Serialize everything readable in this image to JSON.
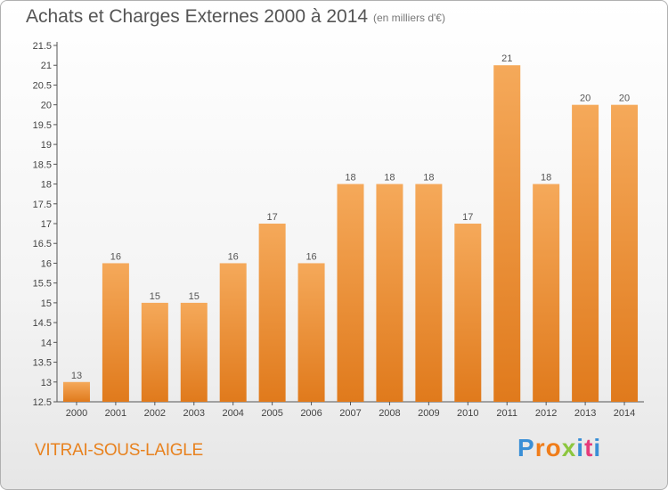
{
  "header": {
    "title": "Achats et Charges Externes 2000 à 2014",
    "unit": "(en milliers d'€)"
  },
  "footer": {
    "place": "VITRAI-SOUS-LAIGLE",
    "logo_letters": [
      "P",
      "r",
      "o",
      "x",
      "i",
      "t",
      "i"
    ]
  },
  "colors": {
    "bar_light": "#f5a95a",
    "bar_dark": "#e07a1c",
    "place_text": "#e8821f",
    "logo": [
      "#3a8fd6",
      "#f07d1a",
      "#f07d1a",
      "#8cc63f",
      "#3a8fd6",
      "#e63b7a",
      "#3a8fd6"
    ]
  },
  "chart_data": {
    "type": "bar",
    "title": "Achats et Charges Externes 2000 à 2014",
    "subtitle": "(en milliers d'€)",
    "categories": [
      "2000",
      "2001",
      "2002",
      "2003",
      "2004",
      "2005",
      "2006",
      "2007",
      "2008",
      "2009",
      "2010",
      "2011",
      "2012",
      "2013",
      "2014"
    ],
    "values": [
      13,
      16,
      15,
      15,
      16,
      17,
      16,
      18,
      18,
      18,
      17,
      21,
      18,
      20,
      20
    ],
    "ylim": [
      12.5,
      21.5
    ],
    "yticks": [
      "12.5",
      "13",
      "13.5",
      "14",
      "14.5",
      "15",
      "15.5",
      "16",
      "16.5",
      "17",
      "17.5",
      "18",
      "18.5",
      "19",
      "19.5",
      "20",
      "20.5",
      "21",
      "21.5"
    ],
    "grid": false,
    "legend": "none"
  }
}
